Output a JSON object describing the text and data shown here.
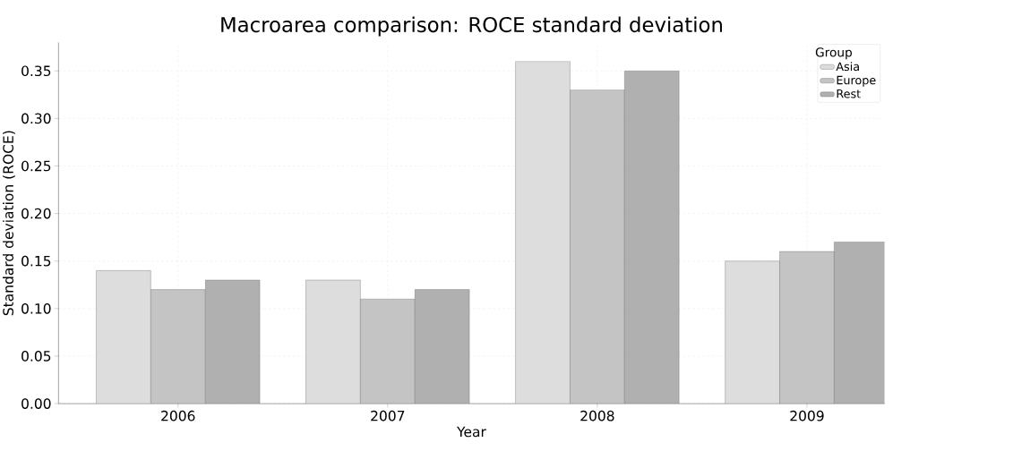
{
  "chart_data": {
    "type": "bar",
    "title": "Macroarea comparison: ROCE standard deviation",
    "xlabel": "Year",
    "ylabel": "Standard deviation (ROCE)",
    "legend_title": "Group",
    "categories": [
      "2006",
      "2007",
      "2008",
      "2009"
    ],
    "series": [
      {
        "name": "Asia",
        "color": "#dddddd",
        "values": [
          0.14,
          0.13,
          0.36,
          0.15
        ]
      },
      {
        "name": "Europe",
        "color": "#c4c4c4",
        "values": [
          0.12,
          0.11,
          0.33,
          0.16
        ]
      },
      {
        "name": "Rest",
        "color": "#b0b0b0",
        "values": [
          0.13,
          0.12,
          0.35,
          0.17
        ]
      }
    ],
    "ylim": [
      0,
      0.38
    ],
    "yticks": [
      {
        "value": 0,
        "label": "0.00"
      },
      {
        "value": 0.05,
        "label": "0.05"
      },
      {
        "value": 0.1,
        "label": "0.10"
      },
      {
        "value": 0.15,
        "label": "0.15"
      },
      {
        "value": 0.2,
        "label": "0.20"
      },
      {
        "value": 0.25,
        "label": "0.25"
      },
      {
        "value": 0.3,
        "label": "0.30"
      },
      {
        "value": 0.35,
        "label": "0.35"
      }
    ],
    "grid": true,
    "legend": "top right"
  }
}
